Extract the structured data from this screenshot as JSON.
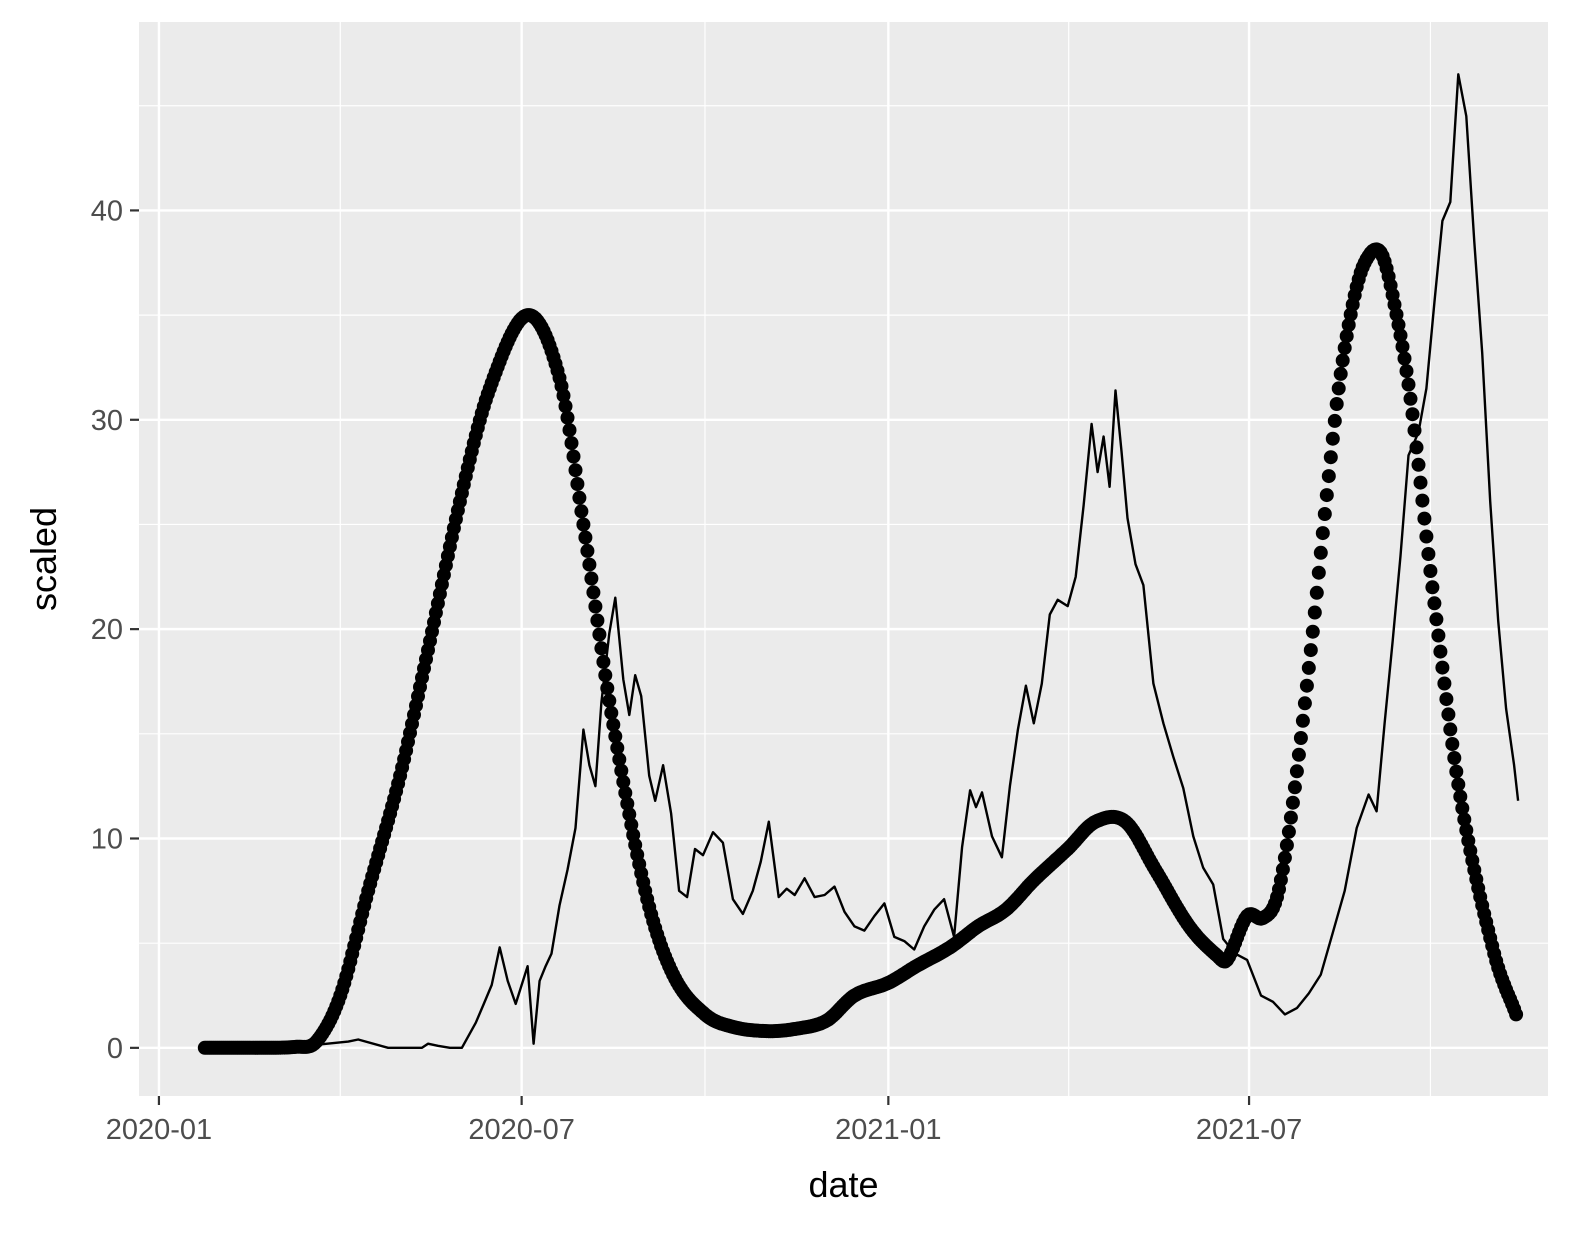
{
  "chart_data": {
    "type": "line",
    "title": "",
    "xlabel": "date",
    "ylabel": "scaled",
    "x_axis": {
      "type": "date",
      "range": [
        "2019-12-22",
        "2021-11-28"
      ],
      "ticks": [
        "2020-01-01",
        "2020-07-01",
        "2021-01-01",
        "2021-07-01"
      ],
      "tick_labels": [
        "2020-01",
        "2020-07",
        "2021-01",
        "2021-07"
      ]
    },
    "y_axis": {
      "range": [
        -2.3,
        49
      ],
      "ticks": [
        0,
        10,
        20,
        30,
        40
      ],
      "tick_labels": [
        "0",
        "10",
        "20",
        "30",
        "40"
      ]
    },
    "grid": true,
    "legend": "none",
    "colors": {
      "panel_background": "#ebebeb",
      "grid": "#ffffff",
      "series": "#000000",
      "tick_text": "#4d4d4d"
    },
    "series": [
      {
        "style": "points",
        "x": [
          "2020-01-24",
          "2020-02-15",
          "2020-03-10",
          "2020-03-20",
          "2020-04-01",
          "2020-04-15",
          "2020-05-01",
          "2020-05-15",
          "2020-06-01",
          "2020-06-15",
          "2020-07-04",
          "2020-07-20",
          "2020-08-01",
          "2020-08-15",
          "2020-09-01",
          "2020-09-15",
          "2020-10-01",
          "2020-10-15",
          "2020-11-01",
          "2020-11-15",
          "2020-12-01",
          "2020-12-15",
          "2021-01-01",
          "2021-01-15",
          "2021-02-01",
          "2021-02-15",
          "2021-03-01",
          "2021-03-15",
          "2021-04-01",
          "2021-04-15",
          "2021-04-30",
          "2021-05-15",
          "2021-06-01",
          "2021-06-15",
          "2021-06-20",
          "2021-06-30",
          "2021-07-08",
          "2021-07-15",
          "2021-07-22",
          "2021-08-01",
          "2021-08-08",
          "2021-08-15",
          "2021-08-22",
          "2021-08-28",
          "2021-09-05",
          "2021-09-12",
          "2021-09-20",
          "2021-10-01",
          "2021-10-15",
          "2021-11-01",
          "2021-11-12"
        ],
        "y": [
          0,
          0,
          0.05,
          0.3,
          2.5,
          7.5,
          13,
          19,
          26.5,
          31.5,
          35,
          32,
          25,
          16,
          7.5,
          3.5,
          1.6,
          1,
          0.8,
          0.9,
          1.3,
          2.5,
          3.1,
          3.9,
          4.8,
          5.8,
          6.6,
          8,
          9.5,
          10.8,
          10.8,
          8.5,
          5.8,
          4.4,
          4.2,
          6.3,
          6.2,
          7.2,
          11,
          19,
          25.5,
          31.5,
          35.5,
          37.5,
          38,
          35.5,
          31,
          22,
          12,
          4.5,
          1.6
        ]
      },
      {
        "style": "line",
        "x": [
          "2020-01-24",
          "2020-03-05",
          "2020-04-05",
          "2020-04-10",
          "2020-04-25",
          "2020-05-12",
          "2020-05-15",
          "2020-05-20",
          "2020-05-26",
          "2020-06-01",
          "2020-06-08",
          "2020-06-12",
          "2020-06-16",
          "2020-06-20",
          "2020-06-24",
          "2020-06-28",
          "2020-07-04",
          "2020-07-07",
          "2020-07-10",
          "2020-07-13",
          "2020-07-16",
          "2020-07-20",
          "2020-07-24",
          "2020-07-28",
          "2020-08-01",
          "2020-08-04",
          "2020-08-07",
          "2020-08-10",
          "2020-08-14",
          "2020-08-17",
          "2020-08-21",
          "2020-08-24",
          "2020-08-27",
          "2020-08-30",
          "2020-09-03",
          "2020-09-06",
          "2020-09-10",
          "2020-09-14",
          "2020-09-18",
          "2020-09-22",
          "2020-09-26",
          "2020-09-30",
          "2020-10-05",
          "2020-10-10",
          "2020-10-15",
          "2020-10-20",
          "2020-10-25",
          "2020-10-29",
          "2020-11-02",
          "2020-11-07",
          "2020-11-11",
          "2020-11-15",
          "2020-11-20",
          "2020-11-25",
          "2020-11-30",
          "2020-12-05",
          "2020-12-10",
          "2020-12-15",
          "2020-12-20",
          "2020-12-25",
          "2020-12-30",
          "2021-01-04",
          "2021-01-09",
          "2021-01-14",
          "2021-01-19",
          "2021-01-24",
          "2021-01-29",
          "2021-02-03",
          "2021-02-07",
          "2021-02-11",
          "2021-02-14",
          "2021-02-17",
          "2021-02-22",
          "2021-02-27",
          "2021-03-03",
          "2021-03-07",
          "2021-03-11",
          "2021-03-15",
          "2021-03-19",
          "2021-03-23",
          "2021-03-27",
          "2021-04-01",
          "2021-04-05",
          "2021-04-09",
          "2021-04-13",
          "2021-04-16",
          "2021-04-19",
          "2021-04-22",
          "2021-04-25",
          "2021-04-28",
          "2021-05-01",
          "2021-05-05",
          "2021-05-09",
          "2021-05-14",
          "2021-05-19",
          "2021-05-24",
          "2021-05-29",
          "2021-06-03",
          "2021-06-08",
          "2021-06-13",
          "2021-06-18",
          "2021-06-24",
          "2021-06-30",
          "2021-07-07",
          "2021-07-13",
          "2021-07-19",
          "2021-07-25",
          "2021-07-31",
          "2021-08-06",
          "2021-08-12",
          "2021-08-18",
          "2021-08-24",
          "2021-08-30",
          "2021-09-03",
          "2021-09-07",
          "2021-09-11",
          "2021-09-15",
          "2021-09-19",
          "2021-09-24",
          "2021-09-28",
          "2021-10-02",
          "2021-10-06",
          "2021-10-10",
          "2021-10-14",
          "2021-10-18",
          "2021-10-22",
          "2021-10-26",
          "2021-10-30",
          "2021-11-03",
          "2021-11-07",
          "2021-11-11",
          "2021-11-13"
        ],
        "y": [
          0,
          0,
          0.3,
          0.4,
          0,
          0,
          0.2,
          0.1,
          0,
          0,
          1.2,
          2.1,
          3,
          4.8,
          3.2,
          2.1,
          3.9,
          0.2,
          3.2,
          3.9,
          4.5,
          6.8,
          8.5,
          10.5,
          15.2,
          13.5,
          12.5,
          16.5,
          19.8,
          21.5,
          17.6,
          15.9,
          17.8,
          16.8,
          13,
          11.8,
          13.5,
          11.2,
          7.5,
          7.2,
          9.5,
          9.2,
          10.3,
          9.8,
          7.1,
          6.4,
          7.5,
          8.9,
          10.8,
          7.2,
          7.6,
          7.3,
          8.1,
          7.2,
          7.3,
          7.7,
          6.5,
          5.8,
          5.6,
          6.3,
          6.9,
          5.3,
          5.1,
          4.7,
          5.8,
          6.6,
          7.1,
          5.3,
          9.6,
          12.3,
          11.5,
          12.2,
          10.1,
          9.1,
          12.5,
          15.2,
          17.3,
          15.5,
          17.4,
          20.7,
          21.4,
          21.1,
          22.5,
          25.9,
          29.8,
          27.5,
          29.2,
          26.8,
          31.4,
          28.5,
          25.3,
          23.1,
          22.1,
          17.4,
          15.5,
          13.9,
          12.4,
          10.1,
          8.6,
          7.8,
          5.2,
          4.5,
          4.2,
          2.5,
          2.2,
          1.6,
          1.9,
          2.6,
          3.5,
          5.5,
          7.5,
          10.5,
          12.1,
          11.3,
          15.5,
          19.4,
          23.5,
          28.3,
          29.4,
          31.5,
          35.6,
          39.5,
          40.4,
          46.5,
          44.5,
          38.5,
          33.2,
          26.1,
          20.4,
          16.2,
          13.5,
          11.8
        ]
      }
    ]
  }
}
